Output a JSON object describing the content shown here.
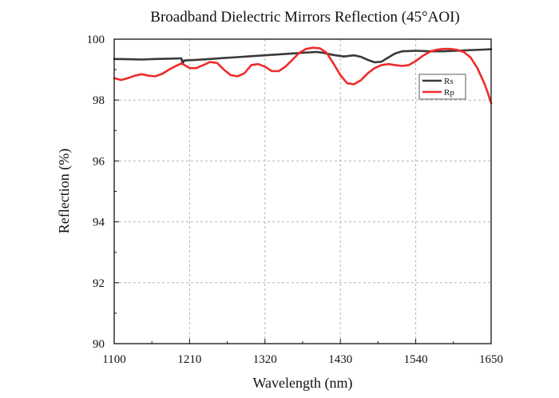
{
  "chart_data": {
    "type": "line",
    "title": "Broadband Dielectric Mirrors Reflection (45°AOI)",
    "xlabel": "Wavelength (nm)",
    "ylabel": "Reflection (%)",
    "xlim": [
      1100,
      1650
    ],
    "ylim": [
      90,
      100
    ],
    "xticks": [
      1100,
      1210,
      1320,
      1430,
      1540,
      1650
    ],
    "yticks": [
      90,
      92,
      94,
      96,
      98,
      100
    ],
    "grid": "on (dashed, at major ticks)",
    "legend_position": "top-right",
    "series": [
      {
        "name": "Rs",
        "color": "#3a3a3a",
        "x": [
          1100,
          1120,
          1140,
          1160,
          1180,
          1198,
          1200,
          1202,
          1220,
          1240,
          1260,
          1280,
          1300,
          1320,
          1340,
          1360,
          1380,
          1395,
          1405,
          1420,
          1435,
          1450,
          1460,
          1470,
          1480,
          1490,
          1500,
          1510,
          1520,
          1540,
          1560,
          1580,
          1600,
          1620,
          1640,
          1650
        ],
        "values": [
          99.35,
          99.34,
          99.33,
          99.35,
          99.36,
          99.37,
          99.2,
          99.3,
          99.32,
          99.35,
          99.38,
          99.41,
          99.44,
          99.47,
          99.5,
          99.53,
          99.56,
          99.58,
          99.55,
          99.48,
          99.43,
          99.47,
          99.42,
          99.32,
          99.24,
          99.26,
          99.4,
          99.53,
          99.6,
          99.62,
          99.6,
          99.6,
          99.62,
          99.64,
          99.66,
          99.67
        ]
      },
      {
        "name": "Rp",
        "color": "#ee2b2b",
        "x": [
          1100,
          1110,
          1120,
          1130,
          1140,
          1150,
          1160,
          1170,
          1180,
          1190,
          1198,
          1205,
          1210,
          1220,
          1230,
          1240,
          1250,
          1260,
          1270,
          1280,
          1290,
          1300,
          1310,
          1320,
          1330,
          1340,
          1350,
          1360,
          1370,
          1380,
          1390,
          1400,
          1410,
          1420,
          1430,
          1440,
          1450,
          1460,
          1470,
          1480,
          1490,
          1500,
          1510,
          1520,
          1530,
          1540,
          1550,
          1560,
          1570,
          1580,
          1590,
          1600,
          1610,
          1620,
          1630,
          1640,
          1645,
          1650
        ],
        "values": [
          98.72,
          98.66,
          98.72,
          98.8,
          98.85,
          98.8,
          98.78,
          98.86,
          99.0,
          99.12,
          99.2,
          99.12,
          99.05,
          99.05,
          99.15,
          99.25,
          99.22,
          99.0,
          98.82,
          98.78,
          98.88,
          99.15,
          99.18,
          99.1,
          98.95,
          98.95,
          99.1,
          99.32,
          99.55,
          99.68,
          99.72,
          99.7,
          99.55,
          99.2,
          98.82,
          98.55,
          98.52,
          98.65,
          98.88,
          99.05,
          99.15,
          99.18,
          99.15,
          99.12,
          99.15,
          99.28,
          99.45,
          99.58,
          99.65,
          99.68,
          99.68,
          99.65,
          99.58,
          99.4,
          99.05,
          98.55,
          98.25,
          97.9
        ]
      }
    ]
  }
}
